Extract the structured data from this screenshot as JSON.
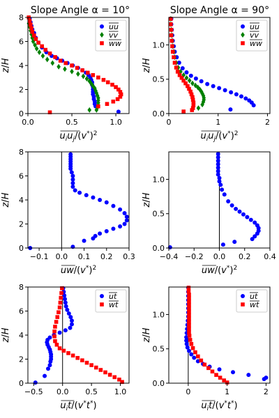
{
  "figure": {
    "title_left": "Slope Angle α = 10°",
    "title_right": "Slope Angle α = 90°"
  },
  "chart_data": [
    {
      "id": "p1",
      "type": "scatter",
      "title": "Slope Angle α = 10°",
      "xlabel": "u_i u_j/(v*)^2",
      "ylabel": "z/H",
      "xlim": [
        0,
        1.15
      ],
      "ylim": [
        0,
        8
      ],
      "xticks": [
        0.0,
        0.5,
        1.0
      ],
      "xticklabels": [
        "0.0",
        "0.5",
        "1.0"
      ],
      "yticks": [
        0,
        2,
        4,
        6,
        8
      ],
      "yticklabels": [
        "0",
        "2",
        "4",
        "6",
        "8"
      ],
      "legend": "top-right",
      "series": [
        {
          "name": "uu",
          "color": "#0000ff",
          "marker": "circle",
          "x": [
            0.02,
            0.03,
            0.04,
            0.05,
            0.07,
            0.09,
            0.12,
            0.16,
            0.21,
            0.27,
            0.33,
            0.39,
            0.45,
            0.51,
            0.57,
            0.62,
            0.66,
            0.69,
            0.71,
            0.72,
            0.73,
            0.73,
            0.74,
            0.74,
            0.74,
            0.74,
            0.75,
            0.75,
            0.76,
            0.76,
            0.77,
            1.03
          ],
          "y": [
            7.9,
            7.6,
            7.3,
            7.0,
            6.7,
            6.3,
            5.9,
            5.5,
            5.1,
            4.8,
            4.6,
            4.4,
            4.2,
            4.0,
            3.8,
            3.6,
            3.4,
            3.2,
            3.0,
            2.8,
            2.6,
            2.4,
            2.2,
            2.0,
            1.8,
            1.6,
            1.4,
            1.2,
            1.0,
            0.8,
            0.6,
            0.15
          ]
        },
        {
          "name": "vv",
          "color": "#008000",
          "marker": "diamond",
          "x": [
            0.01,
            0.02,
            0.03,
            0.04,
            0.05,
            0.06,
            0.08,
            0.1,
            0.13,
            0.17,
            0.22,
            0.28,
            0.35,
            0.42,
            0.5,
            0.57,
            0.63,
            0.67,
            0.7,
            0.72,
            0.74,
            0.76,
            0.77,
            0.78,
            0.79,
            0.8,
            0.8,
            0.8,
            0.8,
            0.79,
            0.78,
            0.7
          ],
          "y": [
            7.5,
            7.2,
            6.9,
            6.6,
            6.3,
            6.0,
            5.7,
            5.4,
            5.1,
            4.8,
            4.5,
            4.2,
            3.9,
            3.7,
            3.5,
            3.3,
            3.1,
            2.9,
            2.7,
            2.5,
            2.3,
            2.1,
            1.9,
            1.7,
            1.5,
            1.3,
            1.1,
            0.9,
            0.7,
            0.5,
            0.3,
            0.3
          ]
        },
        {
          "name": "ww",
          "color": "#ff0000",
          "marker": "square",
          "x": [
            0.01,
            0.02,
            0.03,
            0.04,
            0.05,
            0.07,
            0.09,
            0.12,
            0.16,
            0.2,
            0.25,
            0.31,
            0.37,
            0.43,
            0.5,
            0.56,
            0.62,
            0.68,
            0.74,
            0.8,
            0.86,
            0.91,
            0.96,
            1.0,
            1.03,
            1.05,
            1.06,
            1.05,
            1.02,
            0.97,
            0.9,
            0.8,
            0.25
          ],
          "y": [
            8.0,
            7.7,
            7.4,
            7.1,
            6.8,
            6.5,
            6.2,
            5.9,
            5.6,
            5.3,
            5.0,
            4.7,
            4.4,
            4.2,
            4.0,
            3.8,
            3.6,
            3.4,
            3.2,
            3.0,
            2.8,
            2.6,
            2.4,
            2.2,
            2.0,
            1.8,
            1.6,
            1.4,
            1.2,
            1.0,
            0.8,
            0.6,
            0.1
          ]
        }
      ]
    },
    {
      "id": "p2",
      "type": "scatter",
      "title": "Slope Angle α = 90°",
      "xlabel": "u_i u_j/(v*)^2",
      "ylabel": "z/H",
      "xlim": [
        0,
        2.05
      ],
      "ylim": [
        0,
        1.4
      ],
      "xticks": [
        0,
        1,
        2
      ],
      "xticklabels": [
        "0",
        "1",
        "2"
      ],
      "yticks": [
        0.0,
        0.5,
        1.0
      ],
      "yticklabels": [
        "0.0",
        "0.5",
        "1.0"
      ],
      "legend": "top-right",
      "series": [
        {
          "name": "uu",
          "color": "#0000ff",
          "marker": "circle",
          "x": [
            0.05,
            0.05,
            0.06,
            0.07,
            0.08,
            0.1,
            0.12,
            0.16,
            0.21,
            0.28,
            0.36,
            0.45,
            0.55,
            0.66,
            0.78,
            0.9,
            1.02,
            1.14,
            1.26,
            1.37,
            1.47,
            1.56,
            1.63,
            1.68,
            1.72,
            1.25
          ],
          "y": [
            1.38,
            1.3,
            1.22,
            1.14,
            1.06,
            0.98,
            0.9,
            0.82,
            0.74,
            0.66,
            0.6,
            0.55,
            0.51,
            0.47,
            0.43,
            0.4,
            0.37,
            0.34,
            0.31,
            0.28,
            0.25,
            0.22,
            0.19,
            0.16,
            0.12,
            0.06
          ]
        },
        {
          "name": "vv",
          "color": "#008000",
          "marker": "diamond",
          "x": [
            0.04,
            0.04,
            0.05,
            0.06,
            0.07,
            0.08,
            0.1,
            0.12,
            0.15,
            0.19,
            0.24,
            0.3,
            0.36,
            0.42,
            0.48,
            0.54,
            0.59,
            0.63,
            0.66,
            0.68,
            0.7,
            0.71,
            0.71,
            0.7,
            0.68,
            0.6
          ],
          "y": [
            1.38,
            1.3,
            1.22,
            1.14,
            1.06,
            0.98,
            0.9,
            0.82,
            0.74,
            0.67,
            0.61,
            0.56,
            0.52,
            0.48,
            0.44,
            0.41,
            0.38,
            0.35,
            0.32,
            0.29,
            0.26,
            0.23,
            0.2,
            0.17,
            0.13,
            0.08
          ]
        },
        {
          "name": "ww",
          "color": "#ff0000",
          "marker": "square",
          "x": [
            0.04,
            0.04,
            0.05,
            0.05,
            0.06,
            0.07,
            0.08,
            0.1,
            0.12,
            0.15,
            0.18,
            0.22,
            0.26,
            0.3,
            0.34,
            0.38,
            0.41,
            0.44,
            0.46,
            0.48,
            0.49,
            0.5,
            0.5,
            0.49,
            0.47,
            0.3
          ],
          "y": [
            1.38,
            1.3,
            1.22,
            1.14,
            1.06,
            0.98,
            0.9,
            0.82,
            0.74,
            0.67,
            0.61,
            0.56,
            0.52,
            0.48,
            0.44,
            0.4,
            0.36,
            0.32,
            0.28,
            0.24,
            0.2,
            0.16,
            0.12,
            0.08,
            0.05,
            0.03
          ]
        }
      ]
    },
    {
      "id": "p3",
      "type": "scatter",
      "xlabel": "uw/(v*)^2",
      "ylabel": "z/H",
      "xlim": [
        -0.15,
        0.3
      ],
      "ylim": [
        0,
        8
      ],
      "xticks": [
        -0.1,
        0.0,
        0.1,
        0.2,
        0.3
      ],
      "xticklabels": [
        "−0.1",
        "0.0",
        "0.1",
        "0.2",
        "0.3"
      ],
      "yticks": [
        0,
        2,
        4,
        6,
        8
      ],
      "yticklabels": [
        "0",
        "2",
        "4",
        "6",
        "8"
      ],
      "vline": 0,
      "series": [
        {
          "name": "uw",
          "color": "#0000ff",
          "marker": "circle",
          "x": [
            0.04,
            0.04,
            0.04,
            0.04,
            0.04,
            0.04,
            0.04,
            0.045,
            0.05,
            0.05,
            0.05,
            0.05,
            0.06,
            0.08,
            0.11,
            0.14,
            0.17,
            0.2,
            0.23,
            0.26,
            0.28,
            0.29,
            0.29,
            0.28,
            0.26,
            0.23,
            0.2,
            0.17,
            0.15,
            0.14,
            0.1,
            0.05,
            -0.14
          ],
          "y": [
            7.8,
            7.6,
            7.4,
            7.2,
            7.0,
            6.8,
            6.6,
            6.3,
            6.0,
            5.7,
            5.4,
            5.1,
            4.8,
            4.6,
            4.4,
            4.2,
            4.0,
            3.8,
            3.5,
            3.2,
            2.9,
            2.6,
            2.3,
            2.0,
            1.8,
            1.6,
            1.4,
            1.2,
            1.0,
            0.8,
            0.6,
            0.1,
            0.0
          ]
        }
      ]
    },
    {
      "id": "p4",
      "type": "scatter",
      "xlabel": "uw/(v*)^2",
      "ylabel": "z/H",
      "xlim": [
        -0.4,
        0.4
      ],
      "ylim": [
        0,
        1.4
      ],
      "xticks": [
        -0.4,
        -0.2,
        0.0,
        0.2,
        0.4
      ],
      "xticklabels": [
        "−0.4",
        "−0.2",
        "0.0",
        "0.2",
        "0.4"
      ],
      "yticks": [
        0.0,
        0.5,
        1.0
      ],
      "yticklabels": [
        "0.0",
        "0.5",
        "1.0"
      ],
      "vline": 0,
      "series": [
        {
          "name": "uw",
          "color": "#0000ff",
          "marker": "circle",
          "x": [
            -0.01,
            -0.01,
            -0.01,
            -0.01,
            -0.01,
            -0.01,
            -0.01,
            0.0,
            0.0,
            0.01,
            0.02,
            0.04,
            0.07,
            0.1,
            0.13,
            0.16,
            0.19,
            0.22,
            0.25,
            0.28,
            0.3,
            0.31,
            0.31,
            0.3,
            0.28,
            0.26,
            0.12,
            0.03,
            -0.39
          ],
          "y": [
            1.37,
            1.32,
            1.27,
            1.22,
            1.17,
            1.12,
            1.07,
            1.02,
            0.97,
            0.92,
            0.85,
            0.78,
            0.68,
            0.62,
            0.57,
            0.53,
            0.49,
            0.45,
            0.41,
            0.37,
            0.33,
            0.29,
            0.25,
            0.21,
            0.17,
            0.13,
            0.09,
            0.05,
            0.01
          ]
        }
      ]
    },
    {
      "id": "p5",
      "type": "scatter",
      "xlabel": "u_i t/(v* t*)",
      "ylabel": "z/H",
      "xlim": [
        -0.6,
        1.15
      ],
      "ylim": [
        0,
        8
      ],
      "xticks": [
        -0.5,
        0.0,
        0.5,
        1.0
      ],
      "xticklabels": [
        "−0.5",
        "0.0",
        "0.5",
        "1.0"
      ],
      "yticks": [
        0,
        2,
        4,
        6,
        8
      ],
      "yticklabels": [
        "0",
        "2",
        "4",
        "6",
        "8"
      ],
      "vline": 0,
      "legend": "top-right",
      "series": [
        {
          "name": "ut",
          "color": "#0000ff",
          "marker": "circle",
          "x": [
            0.01,
            0.02,
            0.03,
            0.04,
            0.05,
            0.06,
            0.08,
            0.11,
            0.14,
            0.16,
            0.16,
            0.13,
            0.05,
            -0.05,
            -0.15,
            -0.22,
            -0.26,
            -0.27,
            -0.26,
            -0.24,
            -0.22,
            -0.21,
            -0.2,
            -0.2,
            -0.2,
            -0.21,
            -0.22,
            -0.25,
            -0.31,
            -0.47
          ],
          "y": [
            7.9,
            7.6,
            7.3,
            7.0,
            6.7,
            6.4,
            6.1,
            5.8,
            5.5,
            5.2,
            4.9,
            4.6,
            4.4,
            4.2,
            4.0,
            3.8,
            3.6,
            3.4,
            3.2,
            3.0,
            2.8,
            2.6,
            2.4,
            2.2,
            2.0,
            1.8,
            1.5,
            1.2,
            0.6,
            0.05
          ]
        },
        {
          "name": "wt",
          "color": "#ff0000",
          "marker": "square",
          "x": [
            -0.01,
            -0.02,
            -0.03,
            -0.04,
            -0.05,
            -0.07,
            -0.09,
            -0.11,
            -0.13,
            -0.14,
            -0.14,
            -0.13,
            -0.1,
            -0.05,
            0.02,
            0.1,
            0.18,
            0.26,
            0.34,
            0.42,
            0.5,
            0.58,
            0.66,
            0.74,
            0.82,
            0.9,
            0.98,
            1.03
          ],
          "y": [
            7.9,
            7.5,
            7.1,
            6.7,
            6.3,
            5.9,
            5.5,
            5.1,
            4.7,
            4.3,
            3.9,
            3.5,
            3.2,
            2.9,
            2.7,
            2.5,
            2.3,
            2.1,
            1.9,
            1.7,
            1.5,
            1.3,
            1.1,
            0.9,
            0.7,
            0.5,
            0.3,
            0.1
          ]
        }
      ]
    },
    {
      "id": "p6",
      "type": "scatter",
      "xlabel": "u_i t/(v* t*)",
      "ylabel": "z/H",
      "xlim": [
        -0.5,
        2.1
      ],
      "ylim": [
        0,
        1.4
      ],
      "xticks": [
        0,
        1,
        2
      ],
      "xticklabels": [
        "0",
        "1",
        "2"
      ],
      "yticks": [
        0.0,
        0.5,
        1.0
      ],
      "yticklabels": [
        "0.0",
        "0.5",
        "1.0"
      ],
      "vline": 0,
      "legend": "top-right",
      "series": [
        {
          "name": "ut",
          "color": "#0000ff",
          "marker": "circle",
          "x": [
            0.0,
            0.0,
            0.0,
            0.0,
            0.0,
            0.0,
            0.0,
            0.0,
            -0.01,
            -0.02,
            -0.03,
            -0.04,
            -0.05,
            -0.05,
            -0.04,
            -0.02,
            0.02,
            0.08,
            0.15,
            0.25,
            0.38,
            0.55,
            0.8,
            1.15,
            1.55,
            2.0,
            1.95
          ],
          "y": [
            1.39,
            1.33,
            1.27,
            1.21,
            1.15,
            1.09,
            1.03,
            0.97,
            0.91,
            0.85,
            0.79,
            0.73,
            0.67,
            0.62,
            0.57,
            0.52,
            0.47,
            0.42,
            0.37,
            0.32,
            0.28,
            0.24,
            0.2,
            0.16,
            0.12,
            0.08,
            0.06
          ]
        },
        {
          "name": "wt",
          "color": "#ff0000",
          "marker": "square",
          "x": [
            0.01,
            0.01,
            0.02,
            0.02,
            0.02,
            0.02,
            0.02,
            0.02,
            0.02,
            0.02,
            0.02,
            0.02,
            0.02,
            0.02,
            0.03,
            0.05,
            0.08,
            0.12,
            0.18,
            0.25,
            0.33,
            0.42,
            0.52,
            0.62,
            0.72,
            0.82,
            0.92,
            1.0
          ],
          "y": [
            1.39,
            1.34,
            1.29,
            1.24,
            1.19,
            1.14,
            1.09,
            1.04,
            0.99,
            0.94,
            0.89,
            0.84,
            0.79,
            0.74,
            0.69,
            0.63,
            0.57,
            0.51,
            0.45,
            0.39,
            0.33,
            0.27,
            0.22,
            0.17,
            0.12,
            0.08,
            0.04,
            0.01
          ]
        }
      ]
    }
  ]
}
